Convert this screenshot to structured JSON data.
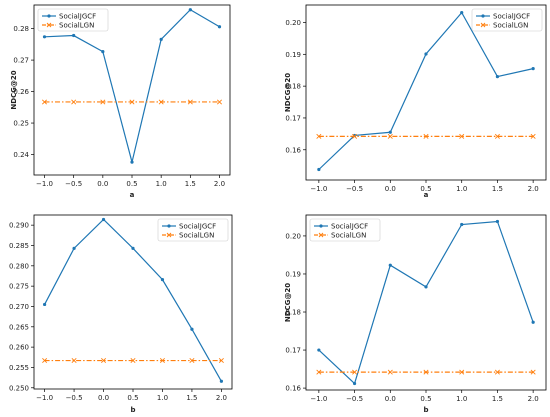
{
  "colors": {
    "jgcf": "#1f77b4",
    "lgn": "#ff7f0e"
  },
  "chart_data": [
    {
      "type": "line",
      "xlabel": "a",
      "ylabel": "NDCG@20",
      "x": [
        -1.0,
        -0.5,
        0.0,
        0.5,
        1.0,
        1.5,
        2.0
      ],
      "x_ticks": [
        "−1.0",
        "−0.5",
        "0.0",
        "0.5",
        "1.0",
        "1.5",
        "2.0"
      ],
      "ylim": [
        0.2335,
        0.2875
      ],
      "y_ticks": [
        0.24,
        0.25,
        0.26,
        0.27,
        0.28
      ],
      "y_tick_labels": [
        "0.24",
        "0.25",
        "0.26",
        "0.27",
        "0.28"
      ],
      "legend_position": "top-left",
      "series": [
        {
          "name": "SocialJGCF",
          "values": [
            0.2774,
            0.2778,
            0.2727,
            0.2376,
            0.2766,
            0.286,
            0.2806
          ]
        },
        {
          "name": "SocialLGN",
          "values": [
            0.2567,
            0.2567,
            0.2567,
            0.2567,
            0.2567,
            0.2567,
            0.2567
          ]
        }
      ]
    },
    {
      "type": "line",
      "xlabel": "a",
      "ylabel": "NDCG@20",
      "x": [
        -1.0,
        -0.5,
        0.0,
        0.5,
        1.0,
        1.5,
        2.0
      ],
      "x_ticks": [
        "−1.0",
        "−0.5",
        "0.0",
        "0.5",
        "1.0",
        "1.5",
        "2.0"
      ],
      "ylim": [
        0.1505,
        0.2055
      ],
      "y_ticks": [
        0.16,
        0.17,
        0.18,
        0.19,
        0.2
      ],
      "y_tick_labels": [
        "0.16",
        "0.17",
        "0.18",
        "0.19",
        "0.20"
      ],
      "legend_position": "top-right",
      "series": [
        {
          "name": "SocialJGCF",
          "values": [
            0.1538,
            0.1645,
            0.1655,
            0.1901,
            0.2031,
            0.183,
            0.1855
          ]
        },
        {
          "name": "SocialLGN",
          "values": [
            0.1642,
            0.1642,
            0.1642,
            0.1642,
            0.1642,
            0.1642,
            0.1642
          ]
        }
      ]
    },
    {
      "type": "line",
      "xlabel": "b",
      "ylabel": "",
      "x": [
        -1.0,
        -0.5,
        0.0,
        0.5,
        1.0,
        1.5,
        2.0
      ],
      "x_ticks": [
        "−1.0",
        "−0.5",
        "0.0",
        "0.5",
        "1.0",
        "1.5",
        "2.0"
      ],
      "ylim": [
        0.2497,
        0.2925
      ],
      "y_ticks": [
        0.25,
        0.255,
        0.26,
        0.265,
        0.27,
        0.275,
        0.28,
        0.285,
        0.29
      ],
      "y_tick_labels": [
        "0.250",
        "0.255",
        "0.260",
        "0.265",
        "0.270",
        "0.275",
        "0.280",
        "0.285",
        "0.290"
      ],
      "legend_position": "top-right",
      "series": [
        {
          "name": "SocialJGCF",
          "values": [
            0.2705,
            0.2843,
            0.2914,
            0.2843,
            0.2766,
            0.2644,
            0.2516
          ]
        },
        {
          "name": "SocialLGN",
          "values": [
            0.2567,
            0.2567,
            0.2567,
            0.2567,
            0.2567,
            0.2567,
            0.2567
          ]
        }
      ]
    },
    {
      "type": "line",
      "xlabel": "b",
      "ylabel": "NDCG@20",
      "x": [
        -1.0,
        -0.5,
        0.0,
        0.5,
        1.0,
        1.5,
        2.0
      ],
      "x_ticks": [
        "−1.0",
        "−0.5",
        "0.0",
        "0.5",
        "1.0",
        "1.5",
        "2.0"
      ],
      "ylim": [
        0.1595,
        0.2055
      ],
      "y_ticks": [
        0.16,
        0.17,
        0.18,
        0.19,
        0.2
      ],
      "y_tick_labels": [
        "0.16",
        "0.17",
        "0.18",
        "0.19",
        "0.20"
      ],
      "legend_position": "top-left",
      "series": [
        {
          "name": "SocialJGCF",
          "values": [
            0.17,
            0.1612,
            0.1923,
            0.1866,
            0.203,
            0.2038,
            0.1773
          ]
        },
        {
          "name": "SocialLGN",
          "values": [
            0.1642,
            0.1642,
            0.1642,
            0.1642,
            0.1642,
            0.1642,
            0.1642
          ]
        }
      ]
    }
  ]
}
